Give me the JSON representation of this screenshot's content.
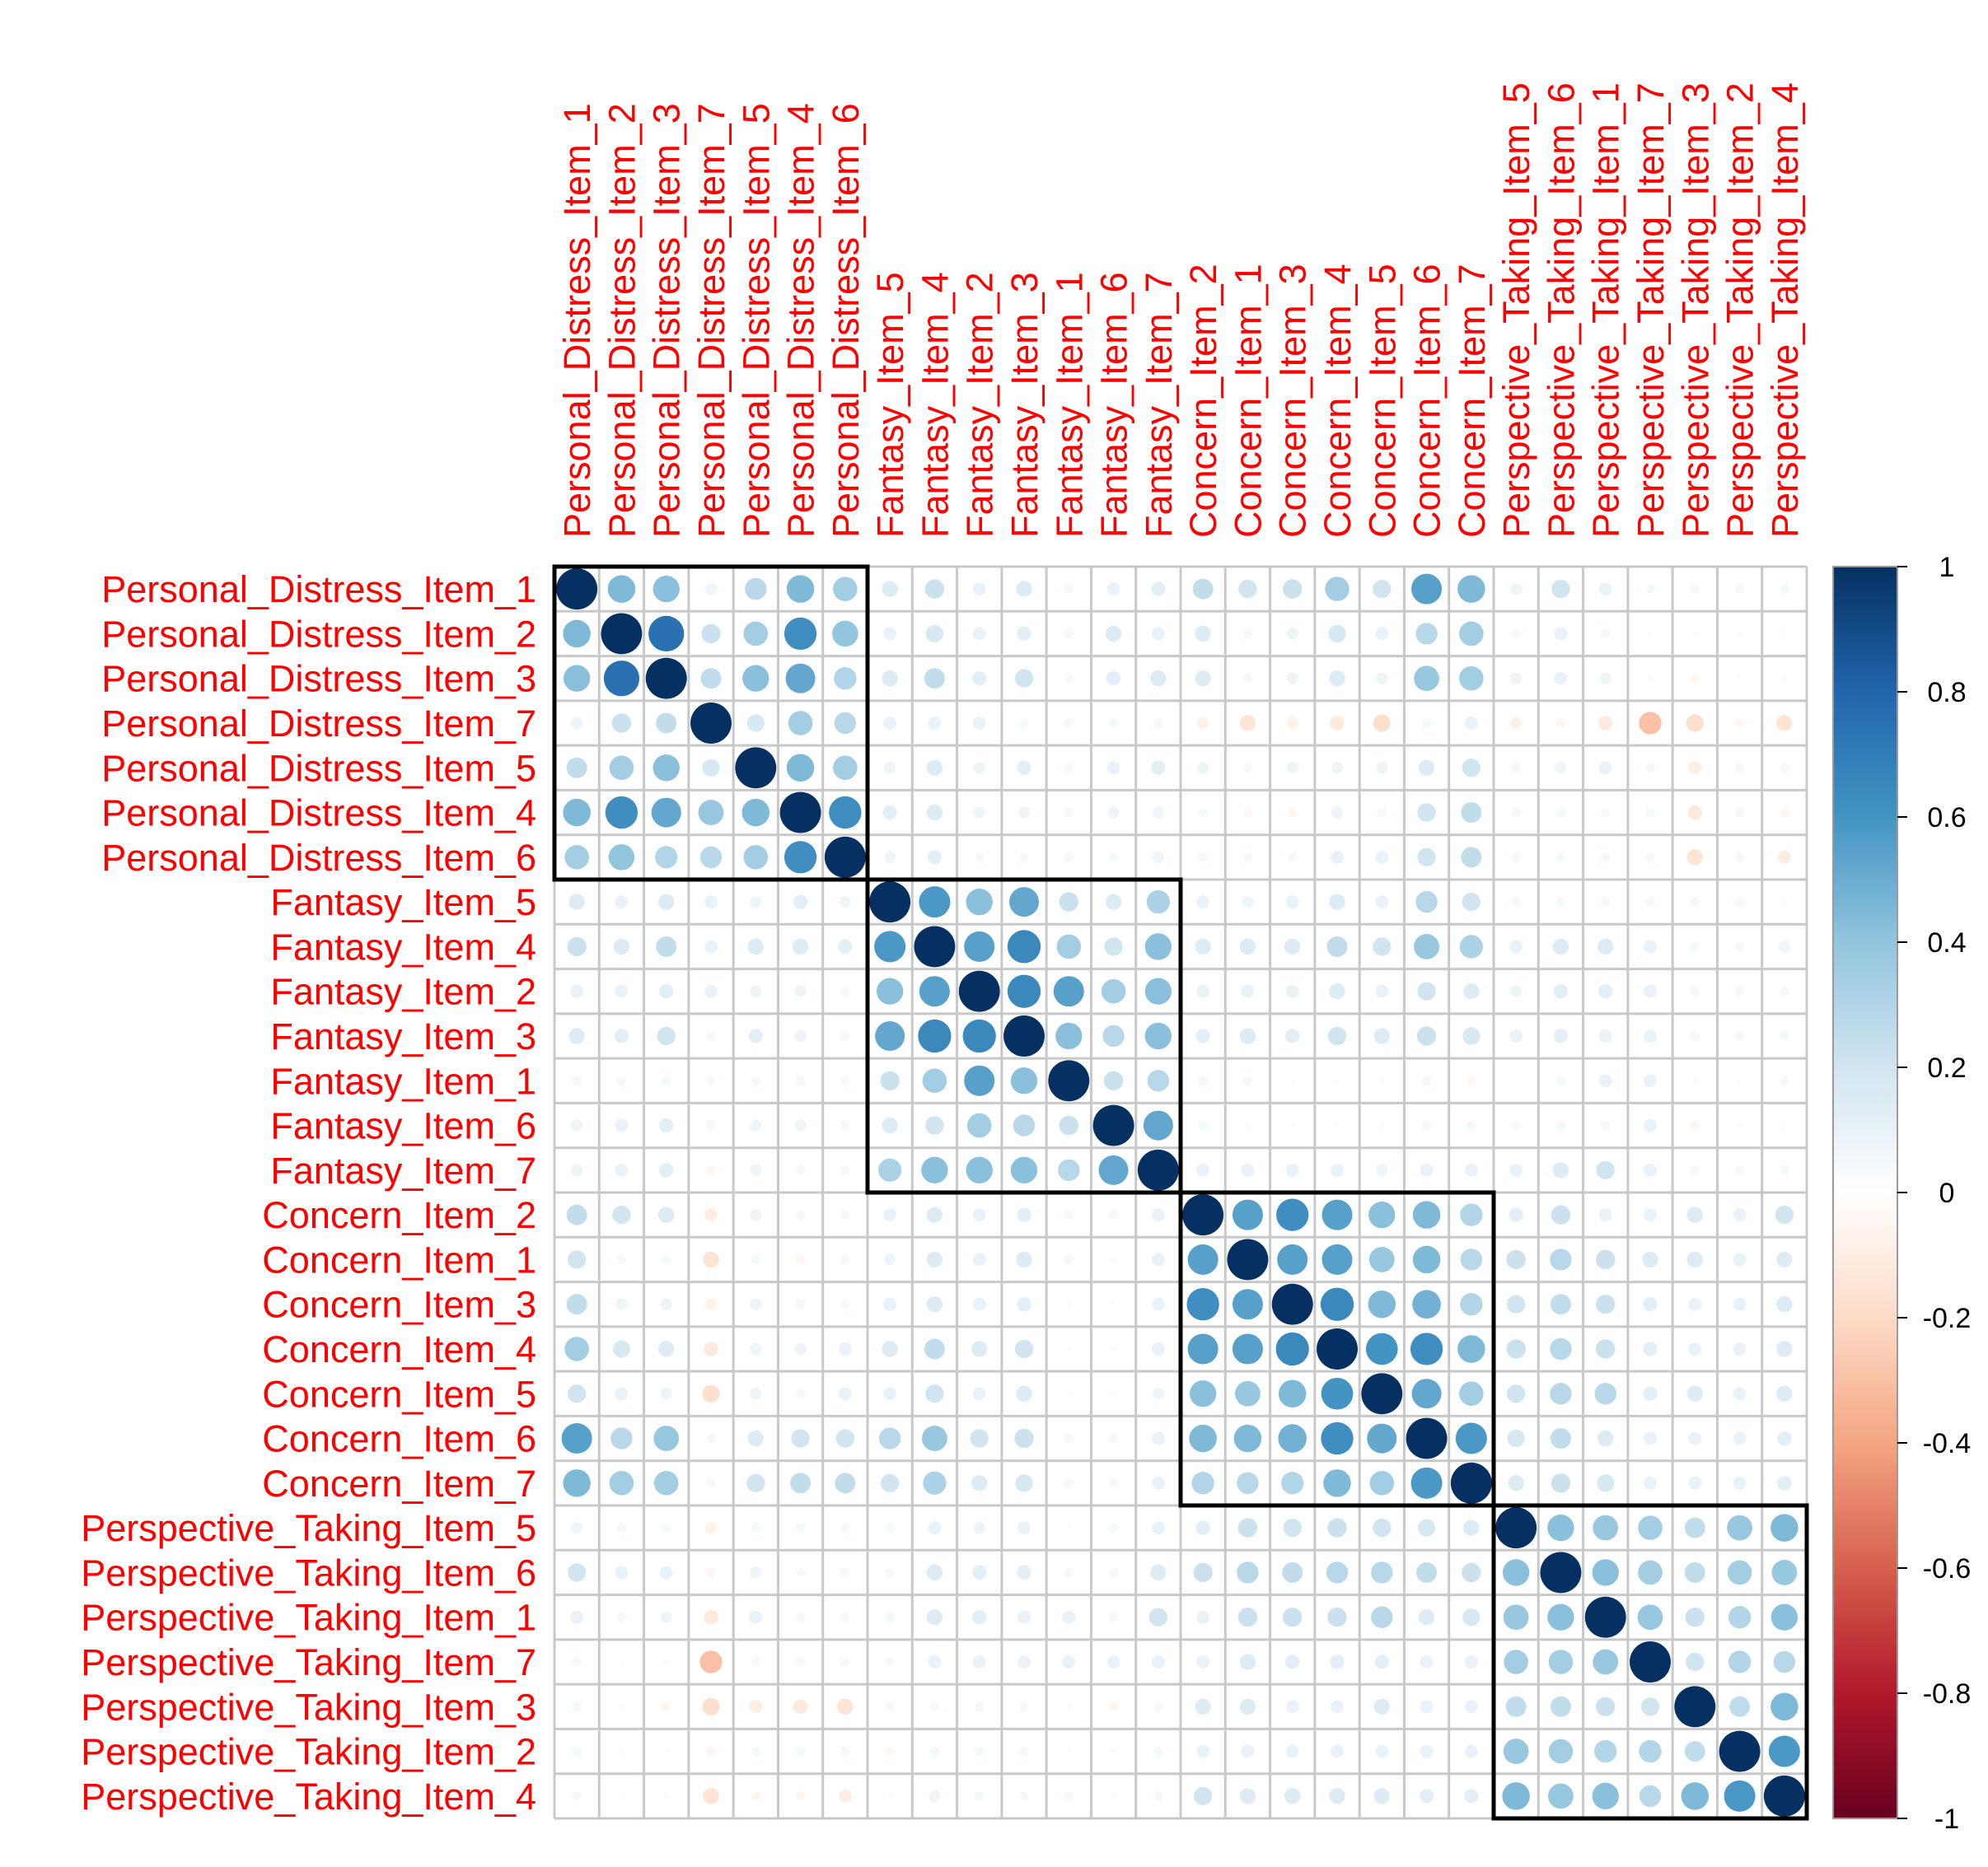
{
  "chart_data": {
    "type": "heatmap",
    "style": "circle",
    "title": "",
    "variables": [
      "Personal_Distress_Item_1",
      "Personal_Distress_Item_2",
      "Personal_Distress_Item_3",
      "Personal_Distress_Item_7",
      "Personal_Distress_Item_5",
      "Personal_Distress_Item_4",
      "Personal_Distress_Item_6",
      "Fantasy_Item_5",
      "Fantasy_Item_4",
      "Fantasy_Item_2",
      "Fantasy_Item_3",
      "Fantasy_Item_1",
      "Fantasy_Item_6",
      "Fantasy_Item_7",
      "Concern_Item_2",
      "Concern_Item_1",
      "Concern_Item_3",
      "Concern_Item_4",
      "Concern_Item_5",
      "Concern_Item_6",
      "Concern_Item_7",
      "Perspective_Taking_Item_5",
      "Perspective_Taking_Item_6",
      "Perspective_Taking_Item_1",
      "Perspective_Taking_Item_7",
      "Perspective_Taking_Item_3",
      "Perspective_Taking_Item_2",
      "Perspective_Taking_Item_4"
    ],
    "matrix": [
      [
        1,
        0.45,
        0.42,
        0.08,
        0.28,
        0.45,
        0.35,
        0.15,
        0.22,
        0.1,
        0.15,
        0.05,
        0.1,
        0.12,
        0.25,
        0.2,
        0.22,
        0.35,
        0.2,
        0.55,
        0.45,
        0.08,
        0.2,
        0.1,
        0.05,
        0.05,
        0.05,
        0.05
      ],
      [
        0.45,
        1,
        0.75,
        0.22,
        0.35,
        0.62,
        0.4,
        0.1,
        0.18,
        0.1,
        0.12,
        0.05,
        0.15,
        0.1,
        0.15,
        0.05,
        0.08,
        0.18,
        0.1,
        0.28,
        0.35,
        0.05,
        0.1,
        0.05,
        0.02,
        0.02,
        0.02,
        0.02
      ],
      [
        0.42,
        0.75,
        1,
        0.25,
        0.42,
        0.52,
        0.3,
        0.15,
        0.25,
        0.12,
        0.2,
        0.05,
        0.12,
        0.15,
        0.15,
        0.05,
        0.08,
        0.15,
        0.08,
        0.38,
        0.35,
        0.08,
        0.1,
        0.08,
        0.02,
        -0.05,
        0.02,
        0.02
      ],
      [
        0.08,
        0.22,
        0.25,
        1,
        0.18,
        0.35,
        0.28,
        0.1,
        0.1,
        0.1,
        0.05,
        0.05,
        0.05,
        0.05,
        -0.08,
        -0.15,
        -0.08,
        -0.12,
        -0.18,
        0.05,
        0.1,
        -0.08,
        -0.05,
        -0.12,
        -0.3,
        -0.18,
        -0.05,
        -0.15
      ],
      [
        0.25,
        0.35,
        0.42,
        0.18,
        1,
        0.45,
        0.35,
        0.08,
        0.15,
        0.08,
        0.12,
        0.05,
        0.1,
        0.12,
        0.08,
        0.05,
        0.08,
        0.08,
        0.08,
        0.15,
        0.2,
        0.05,
        0.08,
        0.1,
        0.05,
        -0.1,
        0.05,
        -0.05
      ],
      [
        0.45,
        0.62,
        0.52,
        0.38,
        0.45,
        1,
        0.62,
        0.12,
        0.15,
        0.08,
        0.08,
        0.05,
        0.08,
        0.08,
        0.05,
        -0.05,
        -0.05,
        0.08,
        0.05,
        0.2,
        0.25,
        0.05,
        0.05,
        0.05,
        0.05,
        -0.12,
        0.05,
        -0.05
      ],
      [
        0.35,
        0.4,
        0.3,
        0.28,
        0.35,
        0.62,
        1,
        0.08,
        0.12,
        0.05,
        0.05,
        0.05,
        0.05,
        0.08,
        0.05,
        0.05,
        0.05,
        0.1,
        0.1,
        0.2,
        0.25,
        0.05,
        0.05,
        0.05,
        0.05,
        -0.15,
        0.05,
        -0.1
      ],
      [
        0.15,
        0.1,
        0.15,
        0.1,
        0.08,
        0.12,
        0.08,
        1,
        0.58,
        0.42,
        0.52,
        0.22,
        0.15,
        0.32,
        0.1,
        0.08,
        0.1,
        0.15,
        0.1,
        0.28,
        0.2,
        0.05,
        0.05,
        0.05,
        0.05,
        0.05,
        -0.05,
        0.02
      ],
      [
        0.22,
        0.15,
        0.25,
        0.1,
        0.15,
        0.15,
        0.12,
        0.58,
        1,
        0.55,
        0.65,
        0.35,
        0.2,
        0.42,
        0.15,
        0.15,
        0.15,
        0.25,
        0.2,
        0.38,
        0.32,
        0.1,
        0.15,
        0.15,
        0.1,
        0.05,
        0.05,
        0.08
      ],
      [
        0.1,
        0.1,
        0.12,
        0.1,
        0.08,
        0.08,
        0.05,
        0.42,
        0.55,
        1,
        0.65,
        0.55,
        0.35,
        0.42,
        0.1,
        0.1,
        0.1,
        0.15,
        0.1,
        0.2,
        0.15,
        0.08,
        0.12,
        0.12,
        0.1,
        0.05,
        0.05,
        0.05
      ],
      [
        0.15,
        0.12,
        0.2,
        0.05,
        0.12,
        0.08,
        0.05,
        0.52,
        0.65,
        0.65,
        1,
        0.42,
        0.28,
        0.42,
        0.12,
        0.15,
        0.12,
        0.2,
        0.15,
        0.22,
        0.18,
        0.1,
        0.12,
        0.1,
        0.1,
        0.05,
        0.05,
        0.05
      ],
      [
        0.05,
        0.05,
        0.05,
        0.05,
        0.05,
        0.05,
        0.05,
        0.22,
        0.35,
        0.55,
        0.42,
        1,
        0.22,
        0.28,
        0.05,
        0.05,
        0.02,
        0.02,
        0.02,
        0.05,
        -0.05,
        0.02,
        0.05,
        0.1,
        0.1,
        0.02,
        0.02,
        0.05
      ],
      [
        0.08,
        0.1,
        0.12,
        0.05,
        0.08,
        0.08,
        0.05,
        0.15,
        0.2,
        0.35,
        0.28,
        0.22,
        1,
        0.52,
        0.05,
        0.02,
        0.02,
        0.02,
        0.02,
        0.05,
        0.05,
        0.05,
        0.05,
        0.05,
        0.1,
        -0.05,
        0.02,
        0.02
      ],
      [
        0.08,
        0.1,
        0.12,
        -0.05,
        0.08,
        0.05,
        0.05,
        0.32,
        0.42,
        0.42,
        0.42,
        0.28,
        0.52,
        1,
        0.1,
        0.1,
        0.1,
        0.1,
        0.08,
        0.1,
        0.1,
        0.1,
        0.15,
        0.2,
        0.1,
        0.05,
        0.05,
        0.05
      ],
      [
        0.25,
        0.2,
        0.15,
        -0.1,
        0.08,
        0.05,
        0.05,
        0.1,
        0.15,
        0.1,
        0.12,
        0.05,
        0.05,
        0.1,
        1,
        0.55,
        0.62,
        0.55,
        0.42,
        0.45,
        0.3,
        0.12,
        0.22,
        0.1,
        0.1,
        0.15,
        0.1,
        0.2
      ],
      [
        0.2,
        0.05,
        0.05,
        -0.15,
        0.05,
        -0.05,
        0.05,
        0.08,
        0.15,
        0.1,
        0.15,
        0.05,
        0.02,
        0.1,
        0.55,
        1,
        0.55,
        0.55,
        0.38,
        0.45,
        0.28,
        0.22,
        0.28,
        0.22,
        0.15,
        0.15,
        0.1,
        0.15
      ],
      [
        0.25,
        0.08,
        0.08,
        -0.08,
        0.08,
        0.05,
        0.05,
        0.1,
        0.15,
        0.1,
        0.12,
        0.02,
        0.02,
        0.1,
        0.62,
        0.55,
        1,
        0.65,
        0.45,
        0.48,
        0.3,
        0.2,
        0.25,
        0.22,
        0.12,
        0.1,
        0.1,
        0.15
      ],
      [
        0.35,
        0.18,
        0.15,
        -0.12,
        0.08,
        0.08,
        0.1,
        0.15,
        0.25,
        0.15,
        0.2,
        0.02,
        0.02,
        0.1,
        0.55,
        0.55,
        0.65,
        1,
        0.6,
        0.62,
        0.45,
        0.22,
        0.28,
        0.22,
        0.12,
        0.1,
        0.1,
        0.15
      ],
      [
        0.2,
        0.1,
        0.08,
        -0.18,
        0.08,
        0.05,
        0.1,
        0.1,
        0.2,
        0.1,
        0.15,
        0.02,
        0.02,
        0.08,
        0.42,
        0.38,
        0.45,
        0.6,
        1,
        0.52,
        0.35,
        0.2,
        0.28,
        0.28,
        0.12,
        0.15,
        0.1,
        0.15
      ],
      [
        0.55,
        0.28,
        0.38,
        0.05,
        0.15,
        0.2,
        0.2,
        0.28,
        0.38,
        0.2,
        0.22,
        0.05,
        0.05,
        0.1,
        0.45,
        0.45,
        0.48,
        0.62,
        0.52,
        1,
        0.58,
        0.18,
        0.25,
        0.15,
        0.1,
        0.1,
        0.1,
        0.12
      ],
      [
        0.45,
        0.35,
        0.35,
        0.05,
        0.2,
        0.25,
        0.25,
        0.2,
        0.32,
        0.15,
        0.18,
        -0.05,
        0.05,
        0.1,
        0.3,
        0.28,
        0.3,
        0.45,
        0.35,
        0.58,
        1,
        0.15,
        0.22,
        0.18,
        0.1,
        0.1,
        0.1,
        0.12
      ],
      [
        0.08,
        0.05,
        0.05,
        -0.08,
        0.05,
        0.05,
        0.05,
        0.05,
        0.1,
        0.08,
        0.1,
        0.02,
        0.05,
        0.1,
        0.12,
        0.22,
        0.2,
        0.22,
        0.2,
        0.18,
        0.15,
        1,
        0.42,
        0.38,
        0.35,
        0.25,
        0.38,
        0.45
      ],
      [
        0.2,
        0.1,
        0.1,
        -0.05,
        0.08,
        0.05,
        0.05,
        0.05,
        0.15,
        0.12,
        0.12,
        0.05,
        0.05,
        0.15,
        0.22,
        0.28,
        0.25,
        0.28,
        0.28,
        0.25,
        0.22,
        0.42,
        1,
        0.42,
        0.35,
        0.25,
        0.35,
        0.38
      ],
      [
        0.1,
        0.05,
        0.08,
        -0.12,
        0.1,
        0.05,
        0.05,
        0.05,
        0.15,
        0.12,
        0.1,
        0.1,
        0.05,
        0.2,
        0.1,
        0.22,
        0.22,
        0.22,
        0.28,
        0.15,
        0.18,
        0.38,
        0.42,
        1,
        0.38,
        0.22,
        0.3,
        0.42
      ],
      [
        0.05,
        0.02,
        0.02,
        -0.3,
        0.05,
        0.05,
        0.05,
        0.05,
        0.1,
        0.1,
        0.1,
        0.1,
        0.1,
        0.1,
        0.1,
        0.15,
        0.12,
        0.12,
        0.12,
        0.1,
        0.1,
        0.35,
        0.35,
        0.38,
        1,
        0.2,
        0.3,
        0.28
      ],
      [
        0.05,
        0.02,
        -0.05,
        -0.18,
        -0.1,
        -0.12,
        -0.15,
        0.05,
        0.05,
        0.05,
        0.05,
        0.02,
        -0.05,
        0.05,
        0.15,
        0.15,
        0.1,
        0.1,
        0.15,
        0.1,
        0.1,
        0.25,
        0.25,
        0.22,
        0.2,
        1,
        0.25,
        0.45
      ],
      [
        0.05,
        0.02,
        0.02,
        -0.05,
        0.05,
        0.05,
        0.05,
        -0.05,
        0.05,
        0.05,
        0.05,
        0.02,
        0.02,
        0.05,
        0.1,
        0.1,
        0.1,
        0.1,
        0.1,
        0.1,
        0.1,
        0.38,
        0.35,
        0.3,
        0.3,
        0.25,
        1,
        0.58
      ],
      [
        0.05,
        0.02,
        0.02,
        -0.15,
        -0.05,
        -0.05,
        -0.1,
        0.02,
        0.08,
        0.05,
        0.05,
        0.05,
        0.02,
        0.05,
        0.2,
        0.15,
        0.15,
        0.15,
        0.15,
        0.12,
        0.12,
        0.45,
        0.38,
        0.42,
        0.28,
        0.45,
        0.58,
        1
      ]
    ],
    "clusters": [
      [
        0,
        6
      ],
      [
        7,
        13
      ],
      [
        14,
        20
      ],
      [
        21,
        27
      ]
    ],
    "colorbar": {
      "ticks": [
        "1",
        "0.8",
        "0.6",
        "0.4",
        "0.2",
        "0",
        "-0.2",
        "-0.4",
        "-0.6",
        "-0.8",
        "-1"
      ],
      "range": [
        -1,
        1
      ]
    },
    "colors": {
      "label": "#ff0000",
      "grid": "#c8c8c8",
      "cluster_border": "#000000",
      "palette": [
        "#67001F",
        "#B2182B",
        "#D6604D",
        "#F4A582",
        "#FDDBC7",
        "#FFFFFF",
        "#D1E5F0",
        "#92C5DE",
        "#4393C3",
        "#2166AC",
        "#053061"
      ]
    }
  }
}
